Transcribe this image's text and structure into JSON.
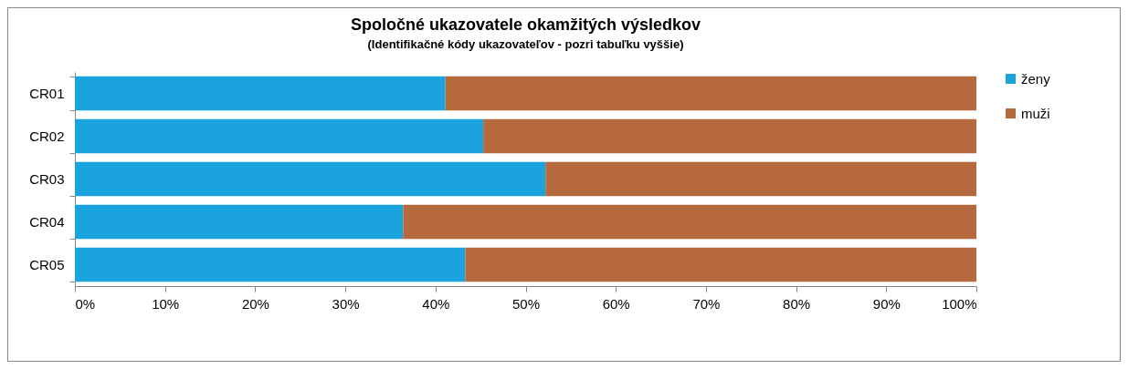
{
  "chart_data": {
    "type": "bar",
    "orientation": "horizontal",
    "stacked": true,
    "title": "Spoločné ukazovatele okamžitých výsledkov",
    "subtitle": "(Identifikačné kódy ukazovateľov - pozri tabuľku vyššie)",
    "categories": [
      "CR01",
      "CR02",
      "CR03",
      "CR04",
      "CR05"
    ],
    "series": [
      {
        "name": "ženy",
        "color": "#1aa3dc",
        "values": [
          41.1,
          45.3,
          52.2,
          36.4,
          43.3
        ]
      },
      {
        "name": "muži",
        "color": "#b5693c",
        "values": [
          58.9,
          54.7,
          47.8,
          63.6,
          56.7
        ]
      }
    ],
    "xlim": [
      0,
      100
    ],
    "xticks": [
      {
        "value": 0,
        "label": "0%"
      },
      {
        "value": 10,
        "label": "10%"
      },
      {
        "value": 20,
        "label": "20%"
      },
      {
        "value": 30,
        "label": "30%"
      },
      {
        "value": 40,
        "label": "40%"
      },
      {
        "value": 50,
        "label": "50%"
      },
      {
        "value": 60,
        "label": "60%"
      },
      {
        "value": 70,
        "label": "70%"
      },
      {
        "value": 80,
        "label": "80%"
      },
      {
        "value": 90,
        "label": "90%"
      },
      {
        "value": 100,
        "label": "100%"
      }
    ],
    "grid": false,
    "legend": "right"
  }
}
